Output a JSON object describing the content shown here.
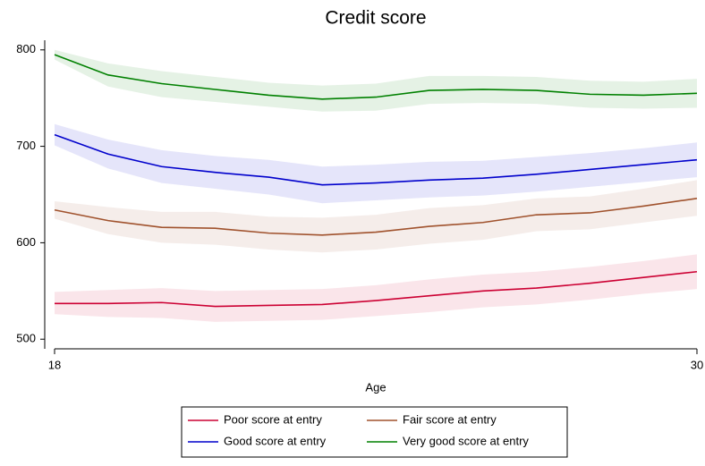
{
  "chart_data": {
    "type": "line",
    "title": "Credit score",
    "x_label": "Age",
    "x": [
      18,
      19,
      20,
      21,
      22,
      23,
      24,
      25,
      26,
      27,
      28,
      29,
      30
    ],
    "xlim": [
      18,
      30
    ],
    "xticks": [
      18,
      30
    ],
    "ylim": [
      490,
      810
    ],
    "yticks": [
      500,
      600,
      700,
      800
    ],
    "grid": false,
    "legend": "bottom",
    "series": [
      {
        "name": "Poor score at entry",
        "color": "#cc0033",
        "values": [
          537,
          537,
          538,
          534,
          535,
          536,
          540,
          545,
          550,
          553,
          558,
          564,
          570
        ],
        "upper": [
          549,
          551,
          553,
          550,
          551,
          552,
          556,
          562,
          567,
          570,
          575,
          581,
          588
        ],
        "lower": [
          526,
          523,
          522,
          518,
          519,
          520,
          524,
          528,
          533,
          536,
          541,
          547,
          552
        ]
      },
      {
        "name": "Fair score at entry",
        "color": "#a0522d",
        "values": [
          634,
          623,
          616,
          615,
          610,
          608,
          611,
          617,
          621,
          629,
          631,
          638,
          646
        ],
        "upper": [
          643,
          637,
          632,
          632,
          627,
          626,
          629,
          636,
          639,
          646,
          648,
          656,
          665
        ],
        "lower": [
          625,
          609,
          600,
          598,
          593,
          590,
          593,
          599,
          603,
          612,
          614,
          621,
          628
        ]
      },
      {
        "name": "Good score at entry",
        "color": "#0000cc",
        "values": [
          712,
          692,
          679,
          673,
          668,
          660,
          662,
          665,
          667,
          671,
          676,
          681,
          686
        ],
        "upper": [
          723,
          707,
          696,
          690,
          686,
          679,
          681,
          684,
          685,
          689,
          693,
          698,
          704
        ],
        "lower": [
          701,
          677,
          662,
          656,
          650,
          641,
          644,
          647,
          649,
          653,
          658,
          663,
          668
        ]
      },
      {
        "name": "Very good score at entry",
        "color": "#008000",
        "values": [
          795,
          774,
          765,
          759,
          753,
          749,
          751,
          758,
          759,
          758,
          754,
          753,
          755
        ],
        "upper": [
          800,
          786,
          778,
          772,
          766,
          763,
          765,
          773,
          773,
          772,
          768,
          767,
          770
        ],
        "lower": [
          790,
          762,
          751,
          746,
          741,
          736,
          737,
          744,
          745,
          744,
          740,
          739,
          740
        ]
      }
    ]
  }
}
